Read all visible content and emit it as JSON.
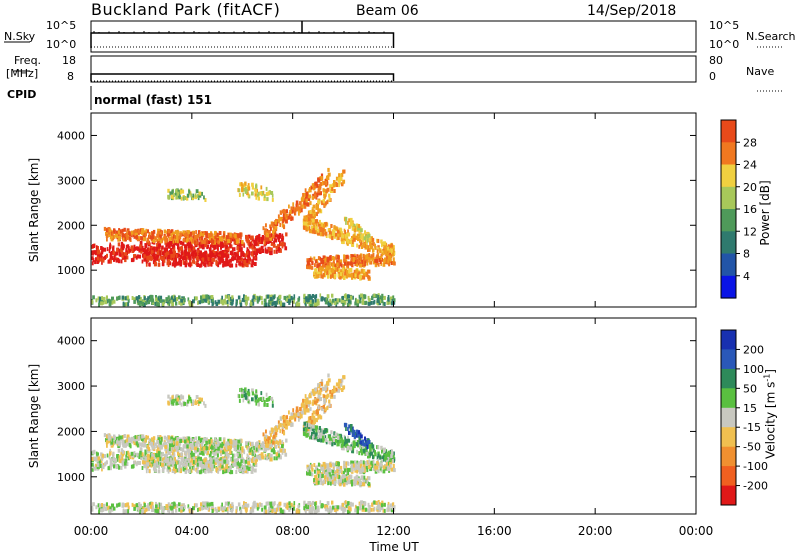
{
  "header": {
    "station": "Buckland Park (fitACF)",
    "beam": "Beam 06",
    "date": "14/Sep/2018"
  },
  "nsky": {
    "left_label": "N.Sky",
    "left_ticks": [
      "10^5",
      "10^0"
    ],
    "right_ticks": [
      "10^5",
      "10^0"
    ],
    "right_label": "N.Search"
  },
  "freq": {
    "left_label_1": "Freq.",
    "left_label_2": "[MHz]",
    "left_ticks": [
      "18",
      "8"
    ],
    "right_ticks": [
      "80",
      "0"
    ],
    "right_label": "Nave"
  },
  "cpid": {
    "label": "CPID",
    "value": "normal (fast) 151"
  },
  "chart_data": [
    {
      "type": "heatmap",
      "name": "power",
      "ylabel": "Slant Range [km]",
      "xlabel": "Time UT",
      "x_ticks": [
        "00:00",
        "04:00",
        "08:00",
        "12:00",
        "16:00",
        "20:00",
        "00:00"
      ],
      "xlim_hours": [
        0,
        24
      ],
      "y_ticks": [
        "1000",
        "2000",
        "3000",
        "4000"
      ],
      "ylim": [
        180,
        4500
      ],
      "data_extent_hours": [
        0,
        12
      ],
      "colorbar": {
        "label": "Power [dB]",
        "ticks": [
          "4",
          "8",
          "12",
          "16",
          "20",
          "24",
          "28"
        ],
        "range": [
          0,
          32
        ],
        "colors": [
          "#0a14e6",
          "#2255a8",
          "#2f7a6e",
          "#4f9a5a",
          "#a8c85a",
          "#f0d040",
          "#f0a020",
          "#f07820",
          "#e84a1a",
          "#e01818"
        ]
      }
    },
    {
      "type": "heatmap",
      "name": "velocity",
      "ylabel": "Slant Range [km]",
      "xlabel": "Time UT",
      "x_ticks": [
        "00:00",
        "04:00",
        "08:00",
        "12:00",
        "16:00",
        "20:00",
        "00:00"
      ],
      "xlim_hours": [
        0,
        24
      ],
      "y_ticks": [
        "1000",
        "2000",
        "3000",
        "4000"
      ],
      "ylim": [
        180,
        4500
      ],
      "data_extent_hours": [
        0,
        12
      ],
      "colorbar": {
        "label": "Velocity [m s-1]",
        "ticks": [
          "200",
          "100",
          "50",
          "15",
          "-15",
          "-50",
          "-100",
          "-200"
        ],
        "colors": [
          "#1830b0",
          "#2a58b8",
          "#2e8a5a",
          "#5ac040",
          "#c8c8c0",
          "#f0c050",
          "#f09030",
          "#f06020",
          "#e01818"
        ]
      }
    }
  ]
}
